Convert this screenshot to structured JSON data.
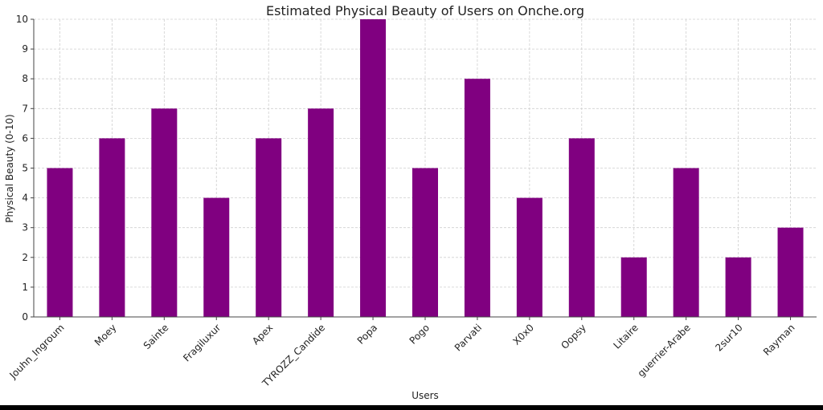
{
  "chart_data": {
    "type": "bar",
    "title": "Estimated Physical Beauty of Users on Onche.org",
    "xlabel": "Users",
    "ylabel": "Physical Beauty (0-10)",
    "categories": [
      "Jouhn_Ingroum",
      "Moey",
      "Sainte",
      "Fragiluxur",
      "Apex",
      "TYROZZ_Candide",
      "Popa",
      "Pogo",
      "Parvati",
      "X0x0",
      "Oopsy",
      "Litaire",
      "guerrier-Arabe",
      "2sur10",
      "Rayman"
    ],
    "values": [
      5,
      6,
      7,
      4,
      6,
      7,
      10,
      5,
      8,
      4,
      6,
      2,
      5,
      2,
      3
    ],
    "ylim": [
      0,
      10
    ],
    "yticks": [
      0,
      1,
      2,
      3,
      4,
      5,
      6,
      7,
      8,
      9,
      10
    ],
    "grid": true,
    "bar_color": "#800080"
  }
}
